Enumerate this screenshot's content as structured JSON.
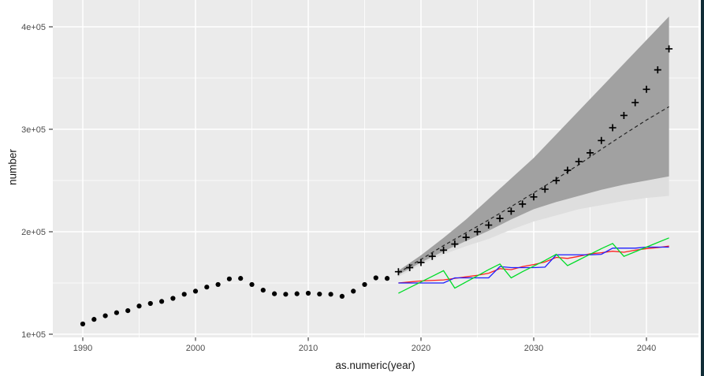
{
  "chart_data": {
    "type": "line",
    "title": "",
    "xlabel": "as.numeric(year)",
    "ylabel": "number",
    "legend": "none",
    "grid": true,
    "xlim": [
      1987.3,
      2044.6
    ],
    "ylim": [
      96900,
      426200
    ],
    "x_ticks": [
      1990,
      2000,
      2010,
      2020,
      2030,
      2040
    ],
    "x_tick_labels": [
      "1990",
      "2000",
      "2010",
      "2020",
      "2030",
      "2040"
    ],
    "x_minor_ticks": [
      1995,
      2005,
      2015,
      2025,
      2035
    ],
    "y_ticks": [
      {
        "label": "1e+05",
        "value": 100000
      },
      {
        "label": "2e+05",
        "value": 200000
      },
      {
        "label": "3e+05",
        "value": 300000
      },
      {
        "label": "4e+05",
        "value": 400000
      }
    ],
    "y_minor_ticks": [
      150000,
      250000,
      350000
    ],
    "colors": {
      "panel_bg": "#EBEBEB",
      "grid": "#FFFFFF",
      "tick_mark": "#333333",
      "tick_label": "#4D4D4D",
      "axis_title": "#1A1A1A",
      "band_inner": "#A1A1A1",
      "band_outer": "#DEDEDE",
      "observed": "#000000",
      "forecast_mean": "#262626",
      "sim_red": "#FF2020",
      "sim_blue": "#1F1FFF",
      "sim_green": "#00DC28",
      "window_border": "#102C36"
    },
    "series": [
      {
        "name": "ci-band-outer",
        "type": "band",
        "color": "#DEDEDE",
        "x": [
          2018,
          2020,
          2022,
          2024,
          2026,
          2028,
          2030,
          2032,
          2034,
          2036,
          2038,
          2040,
          2042
        ],
        "upper": [
          162000,
          177000,
          194000,
          212000,
          232000,
          252000,
          272000,
          295000,
          318000,
          341000,
          364000,
          387000,
          410000
        ],
        "lower": [
          156000,
          168000,
          178000,
          186000,
          193000,
          202000,
          210000,
          216000,
          222000,
          226000,
          230000,
          233000,
          235000
        ]
      },
      {
        "name": "ci-band-inner",
        "type": "band",
        "color": "#A1A1A1",
        "x": [
          2018,
          2020,
          2022,
          2024,
          2026,
          2028,
          2030,
          2032,
          2034,
          2036,
          2038,
          2040,
          2042
        ],
        "upper": [
          162000,
          177000,
          194000,
          212000,
          232000,
          252000,
          272000,
          295000,
          318000,
          341000,
          364000,
          387000,
          410000
        ],
        "lower": [
          158000,
          170000,
          181000,
          191000,
          201000,
          212000,
          222000,
          229000,
          235000,
          241000,
          246000,
          250000,
          254000
        ]
      },
      {
        "name": "forecast-mean-line",
        "type": "line",
        "color": "#262626",
        "width": 1.2,
        "dash": "4.5 3.5",
        "x": [
          2018,
          2020,
          2022,
          2024,
          2026,
          2028,
          2030,
          2032,
          2034,
          2036,
          2038,
          2040,
          2042
        ],
        "y": [
          160000,
          173000,
          186500,
          199000,
          211500,
          224500,
          238000,
          251500,
          265500,
          280500,
          295000,
          309000,
          322000
        ]
      },
      {
        "name": "sim-line-red",
        "type": "line",
        "color": "#FF2020",
        "width": 1.3,
        "x": [
          2018,
          2019,
          2020,
          2021,
          2022,
          2023,
          2024,
          2025,
          2026,
          2027,
          2028,
          2029,
          2030,
          2031,
          2032,
          2033,
          2034,
          2035,
          2036,
          2037,
          2038,
          2039,
          2040,
          2041,
          2042
        ],
        "y": [
          150000,
          151000,
          152000,
          152500,
          153000,
          154500,
          156000,
          157500,
          159500,
          164000,
          163000,
          166000,
          168000,
          170500,
          175000,
          174000,
          176000,
          178500,
          179500,
          181000,
          180000,
          182000,
          183500,
          184500,
          186000
        ]
      },
      {
        "name": "sim-line-blue",
        "type": "line",
        "color": "#1F1FFF",
        "width": 1.3,
        "x": [
          2018,
          2019,
          2020,
          2021,
          2022,
          2023,
          2024,
          2025,
          2026,
          2027,
          2028,
          2029,
          2030,
          2031,
          2032,
          2033,
          2034,
          2035,
          2036,
          2037,
          2038,
          2039,
          2040,
          2041,
          2042
        ],
        "y": [
          150000,
          150000,
          150000,
          150000,
          150000,
          155000,
          155000,
          155000,
          155000,
          166000,
          165000,
          165000,
          165000,
          165500,
          177500,
          177500,
          177500,
          177500,
          178000,
          184000,
          184000,
          184000,
          185000,
          185000,
          185000
        ]
      },
      {
        "name": "sim-line-green",
        "type": "line",
        "color": "#00DC28",
        "width": 1.3,
        "x": [
          2018,
          2019,
          2020,
          2021,
          2022,
          2023,
          2024,
          2025,
          2026,
          2027,
          2028,
          2029,
          2030,
          2031,
          2032,
          2033,
          2034,
          2035,
          2036,
          2037,
          2038,
          2039,
          2040,
          2041,
          2042
        ],
        "y": [
          140000,
          145500,
          151000,
          156500,
          162000,
          145000,
          151000,
          157000,
          163000,
          168500,
          155000,
          161000,
          166500,
          172000,
          178000,
          167000,
          172500,
          178000,
          183500,
          188500,
          176000,
          180500,
          185000,
          189500,
          194000
        ]
      },
      {
        "name": "observed-points",
        "type": "points",
        "marker": "circle",
        "color": "#000000",
        "size": 3.1,
        "x": [
          1990,
          1991,
          1992,
          1993,
          1994,
          1995,
          1996,
          1997,
          1998,
          1999,
          2000,
          2001,
          2002,
          2003,
          2004,
          2005,
          2006,
          2007,
          2008,
          2009,
          2010,
          2011,
          2012,
          2013,
          2014,
          2015,
          2016,
          2017
        ],
        "y": [
          110000,
          114500,
          118000,
          121000,
          123000,
          127500,
          130000,
          132000,
          135000,
          139000,
          142000,
          146000,
          148500,
          154000,
          154500,
          148500,
          143000,
          139500,
          139000,
          139500,
          140000,
          139200,
          139000,
          137000,
          142000,
          148500,
          155000,
          154500
        ]
      },
      {
        "name": "forecast-points",
        "type": "points",
        "marker": "plus",
        "color": "#000000",
        "size": 4.5,
        "x": [
          2018,
          2019,
          2020,
          2021,
          2022,
          2023,
          2024,
          2025,
          2026,
          2027,
          2028,
          2029,
          2030,
          2031,
          2032,
          2033,
          2034,
          2035,
          2036,
          2037,
          2038,
          2039,
          2040,
          2041,
          2042
        ],
        "y": [
          161000,
          165000,
          170000,
          176000,
          182000,
          188000,
          194500,
          200000,
          206500,
          213000,
          220000,
          227000,
          234000,
          241500,
          250000,
          260000,
          268500,
          277000,
          289000,
          301500,
          313500,
          326000,
          339000,
          358000,
          378500
        ]
      }
    ]
  }
}
